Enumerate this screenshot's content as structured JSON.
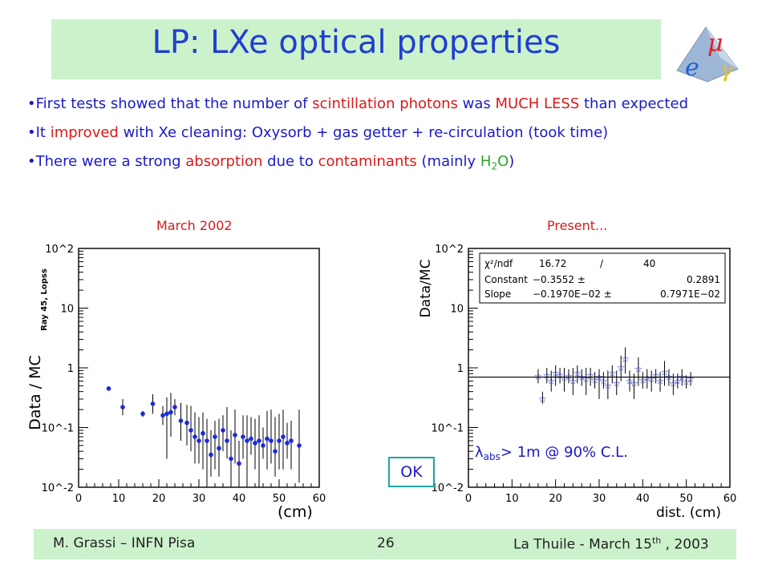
{
  "slide": {
    "title": "LP: LXe optical properties",
    "bullets": [
      {
        "segments": [
          {
            "text": "•First tests showed that the number of ",
            "color": "blue"
          },
          {
            "text": "scintillation photons",
            "color": "red"
          },
          {
            "text": " was ",
            "color": "blue"
          },
          {
            "text": "MUCH LESS",
            "color": "red"
          },
          {
            "text": " than expected",
            "color": "blue"
          }
        ]
      },
      {
        "segments": [
          {
            "text": "•It ",
            "color": "blue"
          },
          {
            "text": "improved",
            "color": "red"
          },
          {
            "text": " with Xe cleaning: Oxysorb + gas getter + re-circulation (took time)",
            "color": "blue"
          }
        ]
      },
      {
        "segments": [
          {
            "text": "•There were a strong ",
            "color": "blue"
          },
          {
            "text": "absorption",
            "color": "red"
          },
          {
            "text": " due to ",
            "color": "blue"
          },
          {
            "text": "contaminants",
            "color": "red"
          },
          {
            "text": " (mainly ",
            "color": "blue"
          },
          {
            "text": "H",
            "color": "green"
          },
          {
            "text": "2",
            "color": "green",
            "sub": true
          },
          {
            "text": "O",
            "color": "green"
          },
          {
            "text": ")",
            "color": "blue"
          }
        ]
      }
    ],
    "caption_left": "March 2002",
    "caption_right": "Present...",
    "ok_label": "OK",
    "annotation": "> 1m @ 90% C.L.",
    "annotation_symbol": "λ",
    "annotation_sub": "abs",
    "footer": {
      "left": "M. Grassi – INFN Pisa",
      "page": "26",
      "right_main": "La Thuile - March 15",
      "right_sup": "th",
      "right_end": " , 2003"
    },
    "colors": {
      "title": "#1f3fd1",
      "text_blue": "#1a1ac8",
      "text_red": "#d81a1a",
      "text_green": "#2aa52a",
      "band": "#ccf2cc",
      "marker": "#1a2bd8"
    }
  },
  "chart_data": [
    {
      "type": "scatter",
      "xlabel": "(cm)",
      "ylabel": "Data / MC",
      "ylabel_sub": "Ray 45, Lopss",
      "xlim": [
        0,
        60
      ],
      "ylim": [
        0.01,
        100
      ],
      "log_y": true,
      "x_ticks": [
        "0",
        "10",
        "20",
        "30",
        "40",
        "50",
        "60"
      ],
      "y_ticks": [
        "10^-2",
        "10^-1",
        "1",
        "10",
        "10^2"
      ],
      "points": [
        {
          "x": 7.5,
          "y": 0.45,
          "elo": 0.45,
          "ehi": 0.45
        },
        {
          "x": 11,
          "y": 0.22,
          "elo": 0.16,
          "ehi": 0.3
        },
        {
          "x": 16,
          "y": 0.17,
          "elo": 0.15,
          "ehi": 0.19
        },
        {
          "x": 18.5,
          "y": 0.25,
          "elo": 0.17,
          "ehi": 0.36
        },
        {
          "x": 21,
          "y": 0.16,
          "elo": 0.11,
          "ehi": 0.23
        },
        {
          "x": 22,
          "y": 0.17,
          "elo": 0.03,
          "ehi": 0.32
        },
        {
          "x": 23,
          "y": 0.18,
          "elo": 0.07,
          "ehi": 0.38
        },
        {
          "x": 24,
          "y": 0.22,
          "elo": 0.16,
          "ehi": 0.3
        },
        {
          "x": 25.5,
          "y": 0.13,
          "elo": 0.06,
          "ehi": 0.26
        },
        {
          "x": 27,
          "y": 0.12,
          "elo": 0.05,
          "ehi": 0.24
        },
        {
          "x": 28,
          "y": 0.09,
          "elo": 0.04,
          "ehi": 0.23
        },
        {
          "x": 29,
          "y": 0.07,
          "elo": 0.025,
          "ehi": 0.18
        },
        {
          "x": 30,
          "y": 0.06,
          "elo": 0.025,
          "ehi": 0.15
        },
        {
          "x": 31,
          "y": 0.08,
          "elo": 0.02,
          "ehi": 0.18
        },
        {
          "x": 32,
          "y": 0.06,
          "elo": 0.01,
          "ehi": 0.14
        },
        {
          "x": 33,
          "y": 0.035,
          "elo": 0.015,
          "ehi": 0.09
        },
        {
          "x": 34,
          "y": 0.07,
          "elo": 0.02,
          "ehi": 0.13
        },
        {
          "x": 35,
          "y": 0.045,
          "elo": 0.015,
          "ehi": 0.14
        },
        {
          "x": 36,
          "y": 0.09,
          "elo": 0.04,
          "ehi": 0.16
        },
        {
          "x": 37,
          "y": 0.06,
          "elo": 0.03,
          "ehi": 0.22
        },
        {
          "x": 38,
          "y": 0.03,
          "elo": 0.01,
          "ehi": 0.09
        },
        {
          "x": 39,
          "y": 0.075,
          "elo": 0.025,
          "ehi": 0.2
        },
        {
          "x": 40,
          "y": 0.025,
          "elo": 0.012,
          "ehi": 0.06
        },
        {
          "x": 41,
          "y": 0.07,
          "elo": 0.03,
          "ehi": 0.16
        },
        {
          "x": 42,
          "y": 0.06,
          "elo": 0.01,
          "ehi": 0.16
        },
        {
          "x": 43,
          "y": 0.065,
          "elo": 0.035,
          "ehi": 0.15
        },
        {
          "x": 44,
          "y": 0.055,
          "elo": 0.02,
          "ehi": 0.14
        },
        {
          "x": 45,
          "y": 0.06,
          "elo": 0.01,
          "ehi": 0.16
        },
        {
          "x": 46,
          "y": 0.05,
          "elo": 0.03,
          "ehi": 0.1
        },
        {
          "x": 47,
          "y": 0.065,
          "elo": 0.02,
          "ehi": 0.19
        },
        {
          "x": 48,
          "y": 0.06,
          "elo": 0.025,
          "ehi": 0.2
        },
        {
          "x": 49,
          "y": 0.04,
          "elo": 0.015,
          "ehi": 0.15
        },
        {
          "x": 50,
          "y": 0.06,
          "elo": 0.02,
          "ehi": 0.17
        },
        {
          "x": 51,
          "y": 0.07,
          "elo": 0.02,
          "ehi": 0.2
        },
        {
          "x": 52,
          "y": 0.055,
          "elo": 0.03,
          "ehi": 0.12
        },
        {
          "x": 53,
          "y": 0.06,
          "elo": 0.02,
          "ehi": 0.13
        },
        {
          "x": 55,
          "y": 0.05,
          "elo": 0.012,
          "ehi": 0.2
        }
      ]
    },
    {
      "type": "scatter",
      "xlabel": "dist. (cm)",
      "ylabel": "Data/MC",
      "xlim": [
        0,
        60
      ],
      "ylim": [
        0.01,
        100
      ],
      "log_y": true,
      "x_ticks": [
        "0",
        "10",
        "20",
        "30",
        "40",
        "50",
        "60"
      ],
      "y_ticks": [
        "10^-2",
        "10^-1",
        "1",
        "10",
        "10^2"
      ],
      "fit": {
        "chi2_label": "χ²/ndf",
        "chi2": "16.72",
        "ndf": "40",
        "rows": [
          {
            "name": "Constant",
            "value": "−0.3552 ±",
            "error": "0.2891"
          },
          {
            "name": "Slope",
            "value": "−0.1970E−02 ±",
            "error": "0.7971E−02"
          }
        ],
        "line_y": 0.7
      },
      "points": [
        {
          "x": 16,
          "y": 0.72,
          "elo": 0.55,
          "ehi": 0.95
        },
        {
          "x": 17,
          "y": 0.3,
          "elo": 0.25,
          "ehi": 0.4
        },
        {
          "x": 18,
          "y": 0.75,
          "elo": 0.55,
          "ehi": 1.0
        },
        {
          "x": 19,
          "y": 0.6,
          "elo": 0.4,
          "ehi": 0.9
        },
        {
          "x": 20,
          "y": 0.8,
          "elo": 0.5,
          "ehi": 1.1
        },
        {
          "x": 21,
          "y": 0.75,
          "elo": 0.55,
          "ehi": 1.0
        },
        {
          "x": 22,
          "y": 0.68,
          "elo": 0.4,
          "ehi": 1.0
        },
        {
          "x": 23,
          "y": 0.72,
          "elo": 0.55,
          "ehi": 0.95
        },
        {
          "x": 24,
          "y": 0.6,
          "elo": 0.35,
          "ehi": 1.0
        },
        {
          "x": 25,
          "y": 0.8,
          "elo": 0.55,
          "ehi": 1.1
        },
        {
          "x": 26,
          "y": 0.7,
          "elo": 0.5,
          "ehi": 0.95
        },
        {
          "x": 27,
          "y": 0.65,
          "elo": 0.35,
          "ehi": 1.0
        },
        {
          "x": 28,
          "y": 0.75,
          "elo": 0.5,
          "ehi": 1.0
        },
        {
          "x": 29,
          "y": 0.62,
          "elo": 0.45,
          "ehi": 0.85
        },
        {
          "x": 30,
          "y": 0.7,
          "elo": 0.3,
          "ehi": 0.95
        },
        {
          "x": 31,
          "y": 0.6,
          "elo": 0.45,
          "ehi": 0.85
        },
        {
          "x": 32,
          "y": 0.5,
          "elo": 0.3,
          "ehi": 0.9
        },
        {
          "x": 33,
          "y": 0.8,
          "elo": 0.55,
          "ehi": 1.1
        },
        {
          "x": 34,
          "y": 0.55,
          "elo": 0.35,
          "ehi": 0.9
        },
        {
          "x": 35,
          "y": 1.0,
          "elo": 0.6,
          "ehi": 1.6
        },
        {
          "x": 36,
          "y": 1.4,
          "elo": 0.8,
          "ehi": 2.2
        },
        {
          "x": 37,
          "y": 0.6,
          "elo": 0.4,
          "ehi": 0.9
        },
        {
          "x": 38,
          "y": 0.55,
          "elo": 0.3,
          "ehi": 0.8
        },
        {
          "x": 39,
          "y": 0.95,
          "elo": 0.5,
          "ehi": 1.5
        },
        {
          "x": 40,
          "y": 0.62,
          "elo": 0.45,
          "ehi": 0.85
        },
        {
          "x": 41,
          "y": 0.68,
          "elo": 0.45,
          "ehi": 0.95
        },
        {
          "x": 42,
          "y": 0.65,
          "elo": 0.4,
          "ehi": 0.9
        },
        {
          "x": 43,
          "y": 0.75,
          "elo": 0.55,
          "ehi": 0.95
        },
        {
          "x": 44,
          "y": 0.6,
          "elo": 0.4,
          "ehi": 0.85
        },
        {
          "x": 45,
          "y": 0.85,
          "elo": 0.5,
          "ehi": 1.3
        },
        {
          "x": 46,
          "y": 0.7,
          "elo": 0.5,
          "ehi": 0.95
        },
        {
          "x": 47,
          "y": 0.55,
          "elo": 0.35,
          "ehi": 0.8
        },
        {
          "x": 48,
          "y": 0.6,
          "elo": 0.45,
          "ehi": 0.8
        },
        {
          "x": 49,
          "y": 0.7,
          "elo": 0.5,
          "ehi": 0.95
        },
        {
          "x": 50,
          "y": 0.58,
          "elo": 0.45,
          "ehi": 0.75
        },
        {
          "x": 51,
          "y": 0.65,
          "elo": 0.5,
          "ehi": 0.85
        }
      ]
    }
  ]
}
